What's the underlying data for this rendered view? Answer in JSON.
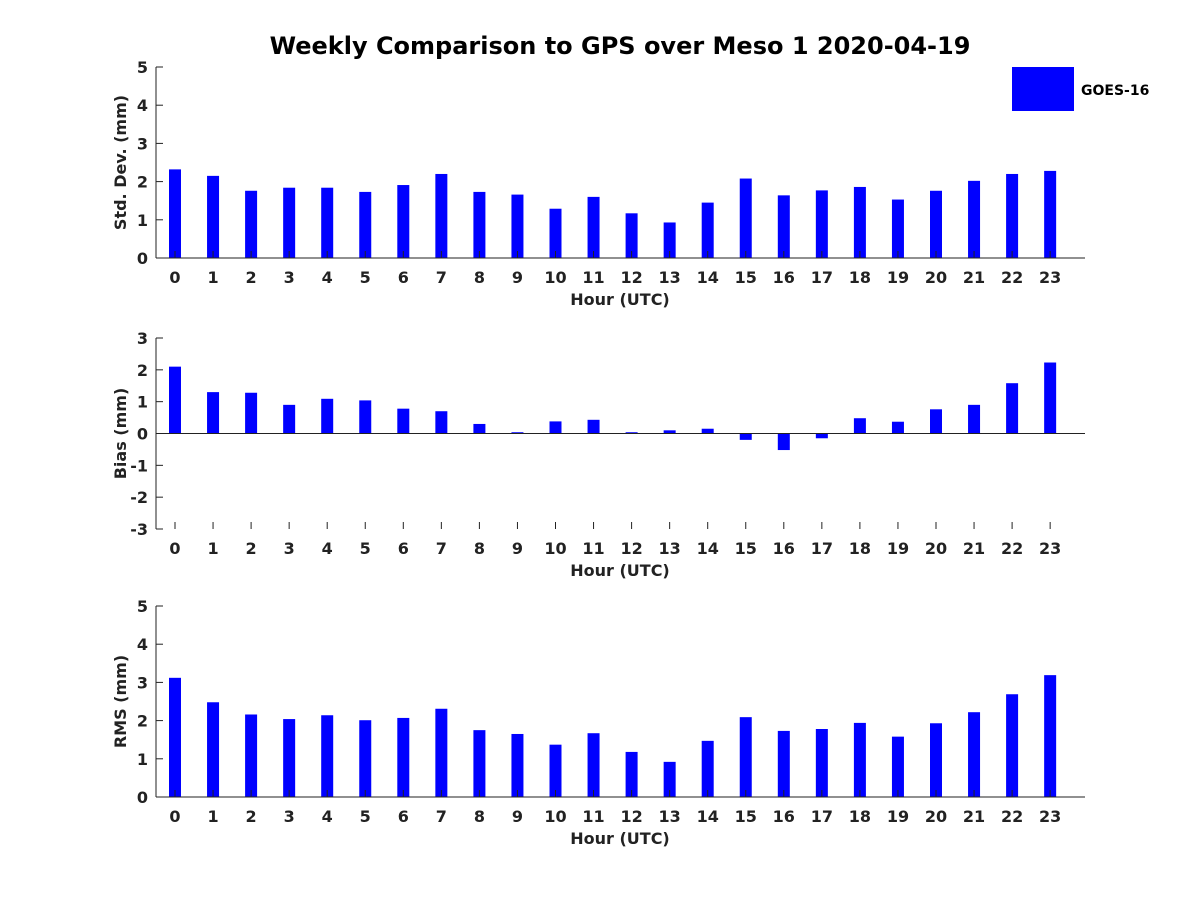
{
  "title": "Weekly Comparison to GPS over Meso 1 2020-04-19",
  "legend": {
    "label": "GOES-16",
    "color": "#0000ff",
    "placement": "top-right"
  },
  "chart_data": [
    {
      "type": "bar",
      "ylabel": "Std. Dev. (mm)",
      "xlabel": "Hour (UTC)",
      "ylim": [
        0,
        5
      ],
      "yticks": [
        0,
        1,
        2,
        3,
        4,
        5
      ],
      "categories": [
        "0",
        "1",
        "2",
        "3",
        "4",
        "5",
        "6",
        "7",
        "8",
        "9",
        "10",
        "11",
        "12",
        "13",
        "14",
        "15",
        "16",
        "17",
        "18",
        "19",
        "20",
        "21",
        "22",
        "23"
      ],
      "series": [
        {
          "name": "GOES-16",
          "values": [
            2.32,
            2.15,
            1.76,
            1.84,
            1.84,
            1.73,
            1.91,
            2.2,
            1.73,
            1.66,
            1.29,
            1.6,
            1.17,
            0.93,
            1.45,
            2.08,
            1.64,
            1.77,
            1.86,
            1.53,
            1.76,
            2.02,
            2.2,
            2.28
          ]
        }
      ]
    },
    {
      "type": "bar",
      "ylabel": "Bias (mm)",
      "xlabel": "Hour (UTC)",
      "ylim": [
        -3,
        3
      ],
      "yticks": [
        -3,
        -2,
        -1,
        0,
        1,
        2,
        3
      ],
      "categories": [
        "0",
        "1",
        "2",
        "3",
        "4",
        "5",
        "6",
        "7",
        "8",
        "9",
        "10",
        "11",
        "12",
        "13",
        "14",
        "15",
        "16",
        "17",
        "18",
        "19",
        "20",
        "21",
        "22",
        "23"
      ],
      "series": [
        {
          "name": "GOES-16",
          "values": [
            2.1,
            1.3,
            1.28,
            0.9,
            1.09,
            1.04,
            0.78,
            0.7,
            0.3,
            0.04,
            0.38,
            0.43,
            0.04,
            0.1,
            0.15,
            -0.2,
            -0.52,
            -0.15,
            0.48,
            0.37,
            0.76,
            0.9,
            1.58,
            2.23
          ]
        }
      ]
    },
    {
      "type": "bar",
      "ylabel": "RMS (mm)",
      "xlabel": "Hour (UTC)",
      "ylim": [
        0,
        5
      ],
      "yticks": [
        0,
        1,
        2,
        3,
        4,
        5
      ],
      "categories": [
        "0",
        "1",
        "2",
        "3",
        "4",
        "5",
        "6",
        "7",
        "8",
        "9",
        "10",
        "11",
        "12",
        "13",
        "14",
        "15",
        "16",
        "17",
        "18",
        "19",
        "20",
        "21",
        "22",
        "23"
      ],
      "series": [
        {
          "name": "GOES-16",
          "values": [
            3.12,
            2.48,
            2.16,
            2.04,
            2.14,
            2.01,
            2.07,
            2.31,
            1.75,
            1.65,
            1.37,
            1.67,
            1.18,
            0.92,
            1.47,
            2.09,
            1.73,
            1.78,
            1.94,
            1.58,
            1.93,
            2.22,
            2.69,
            3.19
          ]
        }
      ]
    }
  ]
}
